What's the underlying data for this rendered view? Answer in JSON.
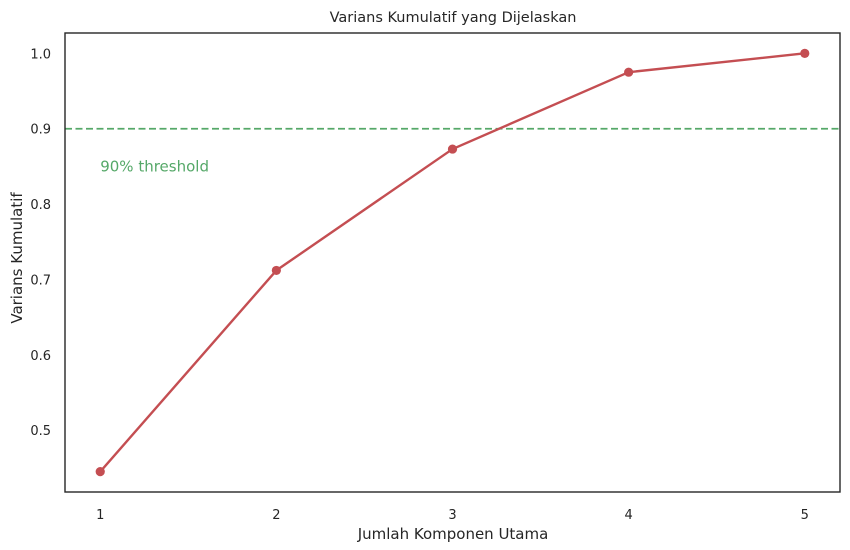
{
  "chart_data": {
    "type": "line",
    "title": "Varians Kumulatif yang Dijelaskan",
    "xlabel": "Jumlah Komponen Utama",
    "ylabel": "Varians Kumulatif",
    "x": [
      1,
      2,
      3,
      4,
      5
    ],
    "series": [
      {
        "values": [
          0.445,
          0.712,
          0.873,
          0.975,
          1.0
        ],
        "color": "#c44e52",
        "marker": "circle"
      }
    ],
    "xlim": [
      0.8,
      5.2
    ],
    "ylim": [
      0.418,
      1.027
    ],
    "xticks": [
      "1",
      "2",
      "3",
      "4",
      "5"
    ],
    "xtick_values": [
      1,
      2,
      3,
      4,
      5
    ],
    "yticks": [
      "0.5",
      "0.6",
      "0.7",
      "0.8",
      "0.9",
      "1.0"
    ],
    "ytick_values": [
      0.5,
      0.6,
      0.7,
      0.8,
      0.9,
      1.0
    ],
    "grid": false,
    "reference_line": {
      "y": 0.9,
      "style": "dashed",
      "color": "#55a868"
    },
    "annotation": {
      "text": "90% threshold",
      "x": 1,
      "y": 0.85,
      "color": "#55a868"
    }
  }
}
